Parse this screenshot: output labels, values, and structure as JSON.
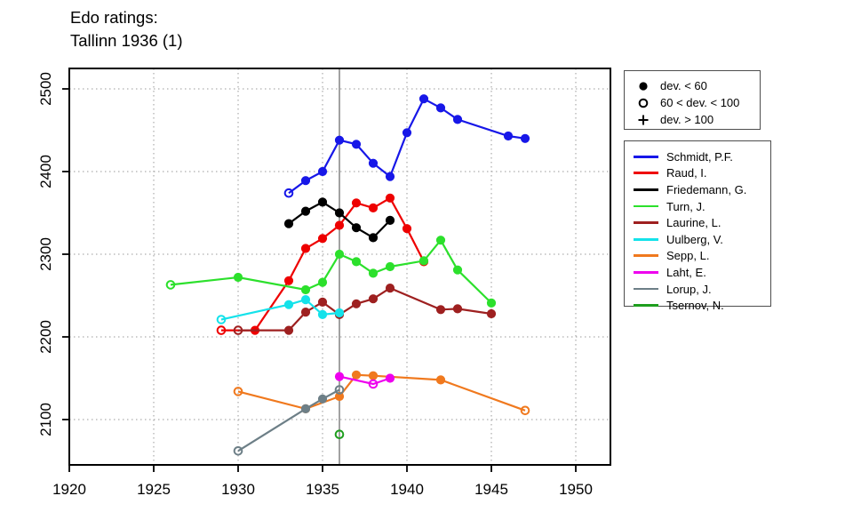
{
  "title": {
    "line1": "Edo ratings:",
    "line2": "Tallinn 1936 (1)"
  },
  "marker_legend": {
    "items": [
      {
        "marker": "filled",
        "label": "dev. < 60"
      },
      {
        "marker": "open",
        "label": "60 < dev. < 100"
      },
      {
        "marker": "plus",
        "label": "dev. > 100"
      }
    ]
  },
  "chart_data": {
    "type": "line",
    "title": "Edo ratings: Tallinn 1936 (1)",
    "xlabel": "",
    "ylabel": "",
    "xlim": [
      1920,
      1952
    ],
    "ylim": [
      2045,
      2525
    ],
    "x_ticks": [
      1920,
      1925,
      1930,
      1935,
      1940,
      1945,
      1950
    ],
    "y_ticks": [
      2100,
      2200,
      2300,
      2400,
      2500
    ],
    "grid": "dotted",
    "vline_x": 1936,
    "vline_color": "#8a8a8a",
    "legend_position": "right",
    "marker_meaning": {
      "filled": "dev. < 60",
      "open": "60 < dev. < 100",
      "plus": "dev. > 100"
    },
    "series": [
      {
        "id": "schmidt",
        "name": "Schmidt, P.F.",
        "color": "#1717e8",
        "points": [
          {
            "year": 1933,
            "rating": 2374,
            "marker": "open"
          },
          {
            "year": 1934,
            "rating": 2389,
            "marker": "filled"
          },
          {
            "year": 1935,
            "rating": 2400,
            "marker": "filled"
          },
          {
            "year": 1936,
            "rating": 2438,
            "marker": "filled"
          },
          {
            "year": 1937,
            "rating": 2433,
            "marker": "filled"
          },
          {
            "year": 1938,
            "rating": 2410,
            "marker": "filled"
          },
          {
            "year": 1939,
            "rating": 2394,
            "marker": "filled"
          },
          {
            "year": 1940,
            "rating": 2447,
            "marker": "filled"
          },
          {
            "year": 1941,
            "rating": 2488,
            "marker": "filled"
          },
          {
            "year": 1942,
            "rating": 2477,
            "marker": "filled"
          },
          {
            "year": 1943,
            "rating": 2463,
            "marker": "filled"
          },
          {
            "year": 1946,
            "rating": 2443,
            "marker": "filled"
          },
          {
            "year": 1947,
            "rating": 2440,
            "marker": "filled"
          }
        ]
      },
      {
        "id": "raud",
        "name": "Raud, I.",
        "color": "#ee0000",
        "points": [
          {
            "year": 1929,
            "rating": 2208,
            "marker": "open"
          },
          {
            "year": 1931,
            "rating": 2208,
            "marker": "filled"
          },
          {
            "year": 1933,
            "rating": 2268,
            "marker": "filled"
          },
          {
            "year": 1934,
            "rating": 2307,
            "marker": "filled"
          },
          {
            "year": 1935,
            "rating": 2319,
            "marker": "filled"
          },
          {
            "year": 1936,
            "rating": 2335,
            "marker": "filled"
          },
          {
            "year": 1937,
            "rating": 2362,
            "marker": "filled"
          },
          {
            "year": 1938,
            "rating": 2356,
            "marker": "filled"
          },
          {
            "year": 1939,
            "rating": 2368,
            "marker": "filled"
          },
          {
            "year": 1940,
            "rating": 2331,
            "marker": "filled"
          },
          {
            "year": 1941,
            "rating": 2291,
            "marker": "filled"
          }
        ]
      },
      {
        "id": "friedemann",
        "name": "Friedemann, G.",
        "color": "#000000",
        "points": [
          {
            "year": 1933,
            "rating": 2337,
            "marker": "filled"
          },
          {
            "year": 1934,
            "rating": 2352,
            "marker": "filled"
          },
          {
            "year": 1935,
            "rating": 2363,
            "marker": "filled"
          },
          {
            "year": 1936,
            "rating": 2350,
            "marker": "filled"
          },
          {
            "year": 1937,
            "rating": 2332,
            "marker": "filled"
          },
          {
            "year": 1938,
            "rating": 2320,
            "marker": "filled"
          },
          {
            "year": 1939,
            "rating": 2341,
            "marker": "filled"
          }
        ]
      },
      {
        "id": "turn",
        "name": "Turn, J.",
        "color": "#2ce02c",
        "points": [
          {
            "year": 1926,
            "rating": 2263,
            "marker": "open"
          },
          {
            "year": 1930,
            "rating": 2272,
            "marker": "filled"
          },
          {
            "year": 1934,
            "rating": 2257,
            "marker": "filled"
          },
          {
            "year": 1935,
            "rating": 2266,
            "marker": "filled"
          },
          {
            "year": 1936,
            "rating": 2300,
            "marker": "filled"
          },
          {
            "year": 1937,
            "rating": 2291,
            "marker": "filled"
          },
          {
            "year": 1938,
            "rating": 2277,
            "marker": "filled"
          },
          {
            "year": 1939,
            "rating": 2285,
            "marker": "filled"
          },
          {
            "year": 1941,
            "rating": 2292,
            "marker": "filled"
          },
          {
            "year": 1942,
            "rating": 2317,
            "marker": "filled"
          },
          {
            "year": 1943,
            "rating": 2281,
            "marker": "filled"
          },
          {
            "year": 1945,
            "rating": 2241,
            "marker": "filled"
          }
        ]
      },
      {
        "id": "laurine",
        "name": "Laurine, L.",
        "color": "#9e2020",
        "points": [
          {
            "year": 1930,
            "rating": 2208,
            "marker": "open"
          },
          {
            "year": 1933,
            "rating": 2208,
            "marker": "filled"
          },
          {
            "year": 1934,
            "rating": 2230,
            "marker": "filled"
          },
          {
            "year": 1935,
            "rating": 2242,
            "marker": "filled"
          },
          {
            "year": 1936,
            "rating": 2227,
            "marker": "filled"
          },
          {
            "year": 1937,
            "rating": 2240,
            "marker": "filled"
          },
          {
            "year": 1938,
            "rating": 2246,
            "marker": "filled"
          },
          {
            "year": 1939,
            "rating": 2259,
            "marker": "filled"
          },
          {
            "year": 1942,
            "rating": 2233,
            "marker": "filled"
          },
          {
            "year": 1943,
            "rating": 2234,
            "marker": "filled"
          },
          {
            "year": 1945,
            "rating": 2228,
            "marker": "filled"
          }
        ]
      },
      {
        "id": "uulberg",
        "name": "Uulberg, V.",
        "color": "#14e2ea",
        "points": [
          {
            "year": 1929,
            "rating": 2221,
            "marker": "open"
          },
          {
            "year": 1933,
            "rating": 2239,
            "marker": "filled"
          },
          {
            "year": 1934,
            "rating": 2245,
            "marker": "filled"
          },
          {
            "year": 1935,
            "rating": 2227,
            "marker": "filled"
          },
          {
            "year": 1936,
            "rating": 2229,
            "marker": "filled"
          }
        ]
      },
      {
        "id": "sepp",
        "name": "Sepp, L.",
        "color": "#f0791e",
        "points": [
          {
            "year": 1930,
            "rating": 2134,
            "marker": "open"
          },
          {
            "year": 1934,
            "rating": 2113,
            "marker": "filled"
          },
          {
            "year": 1936,
            "rating": 2128,
            "marker": "filled"
          },
          {
            "year": 1937,
            "rating": 2154,
            "marker": "filled"
          },
          {
            "year": 1938,
            "rating": 2153,
            "marker": "filled"
          },
          {
            "year": 1942,
            "rating": 2148,
            "marker": "filled"
          },
          {
            "year": 1947,
            "rating": 2111,
            "marker": "open"
          }
        ]
      },
      {
        "id": "laht",
        "name": "Laht, E.",
        "color": "#ee00ee",
        "points": [
          {
            "year": 1936,
            "rating": 2152,
            "marker": "filled"
          },
          {
            "year": 1938,
            "rating": 2143,
            "marker": "open"
          },
          {
            "year": 1939,
            "rating": 2150,
            "marker": "filled"
          }
        ]
      },
      {
        "id": "lorup",
        "name": "Lorup, J.",
        "color": "#6d7f87",
        "points": [
          {
            "year": 1930,
            "rating": 2062,
            "marker": "open"
          },
          {
            "year": 1934,
            "rating": 2113,
            "marker": "filled"
          },
          {
            "year": 1935,
            "rating": 2125,
            "marker": "filled"
          },
          {
            "year": 1936,
            "rating": 2136,
            "marker": "open"
          }
        ]
      },
      {
        "id": "tsernov",
        "name": "Tsernov, N.",
        "color": "#1e9e1e",
        "points": [
          {
            "year": 1936,
            "rating": 2082,
            "marker": "open"
          }
        ]
      }
    ]
  }
}
